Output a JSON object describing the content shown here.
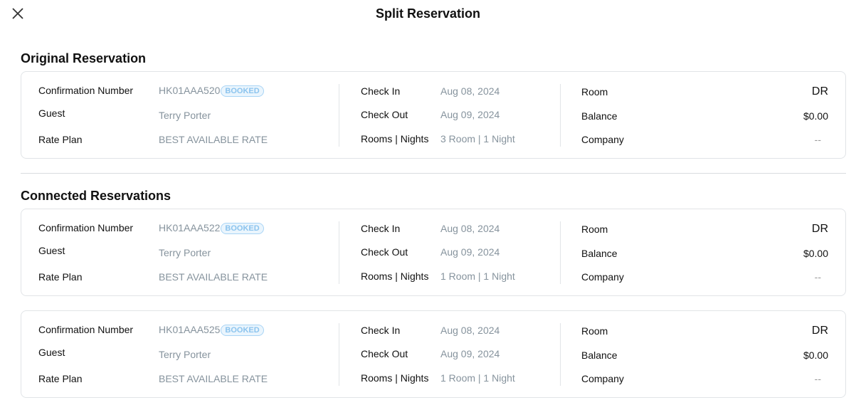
{
  "header": {
    "title": "Split Reservation",
    "close_icon": "close-icon"
  },
  "sections": {
    "original": "Original Reservation",
    "connected": "Connected Reservations"
  },
  "labels": {
    "confirmation": "Confirmation Number",
    "guest": "Guest",
    "rate_plan": "Rate Plan",
    "check_in": "Check In",
    "check_out": "Check Out",
    "rooms_nights": "Rooms | Nights",
    "room": "Room",
    "balance": "Balance",
    "company": "Company"
  },
  "reservations": [
    {
      "confirmation": "HK01AAA520",
      "status": "BOOKED",
      "guest": "Terry Porter",
      "rate_plan": "BEST AVAILABLE RATE",
      "check_in": "Aug 08, 2024",
      "check_out": "Aug 09, 2024",
      "rooms_nights": "3 Room | 1 Night",
      "room": "DR",
      "balance": "$0.00",
      "company": "--"
    },
    {
      "confirmation": "HK01AAA522",
      "status": "BOOKED",
      "guest": "Terry Porter",
      "rate_plan": "BEST AVAILABLE RATE",
      "check_in": "Aug 08, 2024",
      "check_out": "Aug 09, 2024",
      "rooms_nights": "1 Room | 1 Night",
      "room": "DR",
      "balance": "$0.00",
      "company": "--"
    },
    {
      "confirmation": "HK01AAA525",
      "status": "BOOKED",
      "guest": "Terry Porter",
      "rate_plan": "BEST AVAILABLE RATE",
      "check_in": "Aug 08, 2024",
      "check_out": "Aug 09, 2024",
      "rooms_nights": "1 Room | 1 Night",
      "room": "DR",
      "balance": "$0.00",
      "company": "--"
    }
  ],
  "colors": {
    "badge": "#8cc4ee",
    "value": "#86939d"
  }
}
